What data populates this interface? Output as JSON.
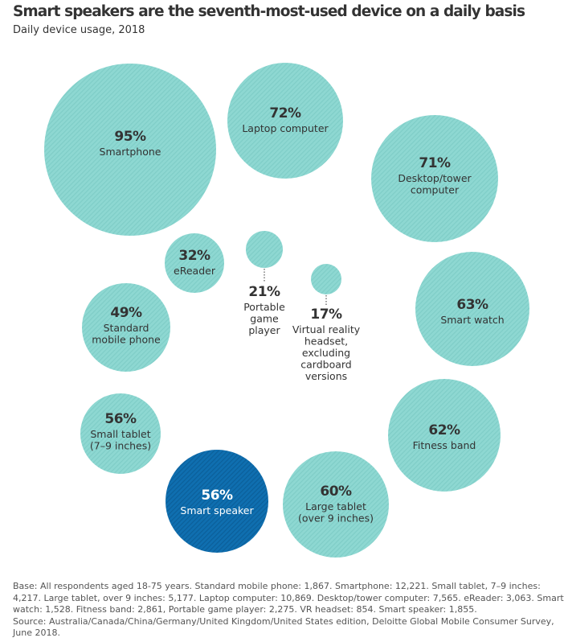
{
  "title": "Smart speakers are the seventh-most-used device on a daily basis",
  "subtitle": "Daily device usage, 2018",
  "colors": {
    "bubble": "#8ed8d2",
    "bubble_stripe": "#7fcdc7",
    "highlight": "#0f6fb0",
    "highlight_stripe": "#0b5f9a",
    "label": "#333333",
    "highlight_label": "#ffffff"
  },
  "chart_data": {
    "type": "bubble",
    "title": "Smart speakers are the seventh-most-used device on a daily basis",
    "subtitle": "Daily device usage, 2018",
    "unit": "%",
    "items": [
      {
        "pct": "95%",
        "value": 95,
        "label": [
          "Smartphone"
        ],
        "highlight": false
      },
      {
        "pct": "72%",
        "value": 72,
        "label": [
          "Laptop computer"
        ],
        "highlight": false
      },
      {
        "pct": "71%",
        "value": 71,
        "label": [
          "Desktop/tower",
          "computer"
        ],
        "highlight": false
      },
      {
        "pct": "63%",
        "value": 63,
        "label": [
          "Smart watch"
        ],
        "highlight": false
      },
      {
        "pct": "62%",
        "value": 62,
        "label": [
          "Fitness band"
        ],
        "highlight": false
      },
      {
        "pct": "60%",
        "value": 60,
        "label": [
          "Large tablet",
          "(over 9 inches)"
        ],
        "highlight": false
      },
      {
        "pct": "56%",
        "value": 56,
        "label": [
          "Smart speaker"
        ],
        "highlight": true
      },
      {
        "pct": "56%",
        "value": 56,
        "label": [
          "Small tablet",
          "(7–9 inches)"
        ],
        "highlight": false
      },
      {
        "pct": "49%",
        "value": 49,
        "label": [
          "Standard",
          "mobile phone"
        ],
        "highlight": false
      },
      {
        "pct": "32%",
        "value": 32,
        "label": [
          "eReader"
        ],
        "highlight": false
      },
      {
        "pct": "21%",
        "value": 21,
        "label": [
          "Portable",
          "game",
          "player"
        ],
        "highlight": false
      },
      {
        "pct": "17%",
        "value": 17,
        "label": [
          "Virtual reality",
          "headset,",
          "excluding",
          "cardboard",
          "versions"
        ],
        "highlight": false
      }
    ]
  },
  "source": {
    "lines": [
      "Base: All respondents aged 18-75 years. Standard mobile phone: 1,867. Smartphone: 12,221. Small tablet, 7–9 inches:",
      "4,217. Large tablet, over 9 inches: 5,177. Laptop computer: 10,869. Desktop/tower computer: 7,565. eReader: 3,063. Smart",
      "watch: 1,528. Fitness band: 2,861, Portable game player: 2,275. VR headset: 854. Smart speaker: 1,855.",
      "Source: Australia/Canada/China/Germany/United Kingdom/United States edition, Deloitte Global Mobile Consumer Survey,",
      "June 2018."
    ]
  }
}
